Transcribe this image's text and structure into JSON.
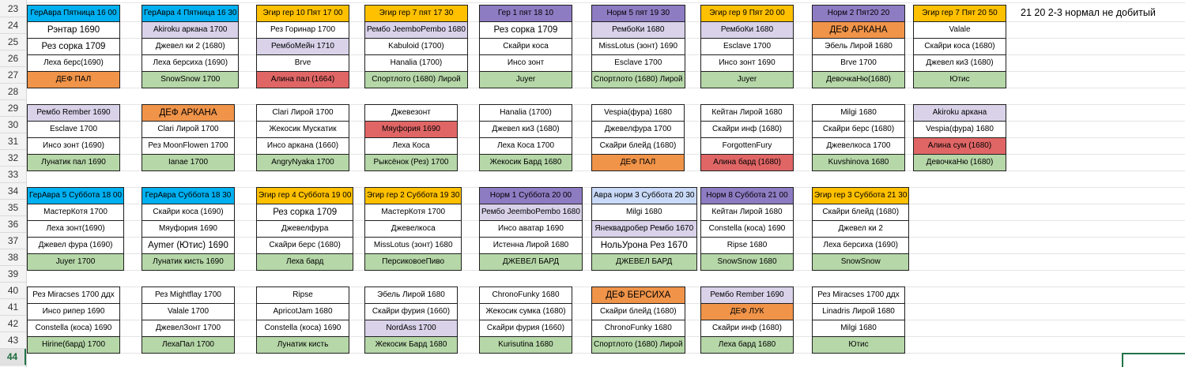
{
  "sheet": {
    "row_numbers": [
      "23",
      "24",
      "25",
      "26",
      "27",
      "28",
      "29",
      "30",
      "31",
      "32",
      "33",
      "34",
      "35",
      "36",
      "37",
      "38",
      "39",
      "40",
      "41",
      "42",
      "43",
      "44"
    ],
    "active_row": "44",
    "note": "21 20 2-3 нормал не добитый",
    "palette": {
      "blue": "#00b0f0",
      "yellow": "#ffc000",
      "purple": "#8e7cc3",
      "lavender": "#d9d2e9",
      "orange": "#f0944a",
      "green": "#b6d7a8",
      "red": "#e06666",
      "light_blue": "#c9daf8",
      "selection": "#217346"
    },
    "blocks": [
      {
        "columns": [
          [
            {
              "t": "ГерАвра Пятница 16 00",
              "c": "blue"
            },
            {
              "t": "Рэнтар 1690",
              "s": "big"
            },
            {
              "t": "Рез сорка 1709",
              "s": "big"
            },
            {
              "t": "Леха берс(1690)"
            },
            {
              "t": "ДЕФ ПАЛ",
              "c": "orange"
            }
          ],
          [
            {
              "t": "ГерАвра 4 Пятница 16 30",
              "c": "blue"
            },
            {
              "t": "Akiroku аркана 1700",
              "c": "lavender"
            },
            {
              "t": "Джевел ки 2 (1680)"
            },
            {
              "t": "Леха берсиха (1690)"
            },
            {
              "t": "SnowSnow 1700",
              "c": "green"
            }
          ],
          [
            {
              "t": "Эгир гер 10 Пят 17 00",
              "c": "yellow"
            },
            {
              "t": "Рез Горинар 1700"
            },
            {
              "t": "РембоМейн 1710",
              "c": "lavender"
            },
            {
              "t": "Brve"
            },
            {
              "t": "Алина пал (1664)",
              "c": "red"
            }
          ],
          [
            {
              "t": "Эгир гер 7 пят 17 30",
              "c": "yellow"
            },
            {
              "t": "Рембо JeemboPembo 1680",
              "c": "lavender"
            },
            {
              "t": "Kabuloid (1700)"
            },
            {
              "t": "Hanalia (1700)"
            },
            {
              "t": "Спортлото (1680) Лирой",
              "c": "green"
            }
          ],
          [
            {
              "t": "Гер 1 пят 18 10",
              "c": "purple"
            },
            {
              "t": "Рез сорка 1709",
              "s": "big"
            },
            {
              "t": "Скайри коса"
            },
            {
              "t": "Инсо зонт"
            },
            {
              "t": "Juyer",
              "c": "green"
            }
          ],
          [
            {
              "t": "Норм 5  пят 19 30",
              "c": "purple"
            },
            {
              "t": "РембоКи 1680",
              "c": "lavender"
            },
            {
              "t": "MissLotus (зонт) 1690"
            },
            {
              "t": "Esclave 1700"
            },
            {
              "t": "Спортлото (1680) Лирой",
              "c": "green"
            }
          ],
          [
            {
              "t": "Эгир гер 9 Пят  20 00",
              "c": "yellow"
            },
            {
              "t": "РембоКи 1680",
              "c": "lavender"
            },
            {
              "t": "Esclave 1700"
            },
            {
              "t": "Инсо зонт 1690"
            },
            {
              "t": "Juyer",
              "c": "green"
            }
          ],
          [
            {
              "t": "Норм 2 Пят20 20",
              "c": "purple"
            },
            {
              "t": "ДЕФ АРКАНА",
              "c": "orange",
              "s": "big"
            },
            {
              "t": "Эбель Лирой 1680"
            },
            {
              "t": "Brve 1700"
            },
            {
              "t": "ДевочкаНю(1680)",
              "c": "green"
            }
          ],
          [
            {
              "t": "Эгир гер 7 Пят 20 50",
              "c": "yellow"
            },
            {
              "t": "Valale"
            },
            {
              "t": "Скайри коса (1680)"
            },
            {
              "t": "Джевел ки3 (1680)"
            },
            {
              "t": "Ютис",
              "c": "green"
            }
          ]
        ]
      },
      {
        "columns": [
          [
            {
              "t": "Рембо Rember 1690",
              "c": "lavender"
            },
            {
              "t": "Esclave 1700"
            },
            {
              "t": "Инсо зонт (1690)"
            },
            {
              "t": "Лунатик пал 1690",
              "c": "green"
            }
          ],
          [
            {
              "t": "ДЕФ АРКАНА",
              "c": "orange",
              "s": "big"
            },
            {
              "t": "Clari Лирой 1700"
            },
            {
              "t": "Рез MoonFlowen 1700"
            },
            {
              "t": "Ianae 1700",
              "c": "green"
            }
          ],
          [
            {
              "t": "Clari Лирой 1700"
            },
            {
              "t": "Жекосик Мускатик"
            },
            {
              "t": "Инсо аркана (1660)"
            },
            {
              "t": "AngryNyaka 1700",
              "c": "green"
            }
          ],
          [
            {
              "t": "Джевезонт"
            },
            {
              "t": "Мяуфория 1690",
              "c": "red"
            },
            {
              "t": "Леха Коса"
            },
            {
              "t": "Рыксёнок (Рез) 1700",
              "c": "green"
            }
          ],
          [
            {
              "t": "Hanalia (1700)"
            },
            {
              "t": "Джевел ки3 (1680)"
            },
            {
              "t": "Леха Коса 1700"
            },
            {
              "t": "Жекосик Бард 1680",
              "c": "green"
            }
          ],
          [
            {
              "t": "Vespia(фура) 1680"
            },
            {
              "t": "Джевелфура 1700"
            },
            {
              "t": "Скайри блейд  (1680)"
            },
            {
              "t": "ДЕФ ПАЛ",
              "c": "orange"
            }
          ],
          [
            {
              "t": "Кейтан Лирой 1680"
            },
            {
              "t": "Скайри инф (1680)"
            },
            {
              "t": "ForgottenFury"
            },
            {
              "t": "Алина бард  (1680)",
              "c": "red"
            }
          ],
          [
            {
              "t": "Milgi 1680"
            },
            {
              "t": "Скайри берс (1680)"
            },
            {
              "t": "Джевелкоса 1700"
            },
            {
              "t": "Kuvshinova 1680",
              "c": "green"
            }
          ],
          [
            {
              "t": "Akiroku аркана",
              "c": "lavender"
            },
            {
              "t": "Vespia(фура) 1680"
            },
            {
              "t": "Алина сум (1680)",
              "c": "red"
            },
            {
              "t": "ДевочкаНю (1680)",
              "c": "green"
            }
          ]
        ]
      },
      {
        "columns": [
          [
            {
              "t": "ГерАвра 5 Суббота 18 00",
              "c": "blue"
            },
            {
              "t": "МастерКотя 1700"
            },
            {
              "t": "Леха зонт(1690)"
            },
            {
              "t": "Джевел фура (1690)"
            },
            {
              "t": "Juyer 1700",
              "c": "green"
            }
          ],
          [
            {
              "t": "ГерАвра Суббота 18 30",
              "c": "blue"
            },
            {
              "t": "Скайри коса (1690)"
            },
            {
              "t": "Мяуфория 1690"
            },
            {
              "t": "Aymer (Ютис) 1690",
              "s": "big"
            },
            {
              "t": "Лунатик кисть 1690",
              "c": "green"
            }
          ],
          [
            {
              "t": "Эгир гер 4 Суббота 19 00",
              "c": "yellow"
            },
            {
              "t": "Рез сорка 1709",
              "s": "big"
            },
            {
              "t": "Джевелфура"
            },
            {
              "t": "Скайри берс (1680)"
            },
            {
              "t": "Леха бард",
              "c": "green"
            }
          ],
          [
            {
              "t": "Эгир гер 2 Суббота 19 30",
              "c": "yellow"
            },
            {
              "t": "МастерКотя 1700"
            },
            {
              "t": "Джевелкоса"
            },
            {
              "t": "MissLotus (зонт) 1680"
            },
            {
              "t": "ПерсиковоеПиво",
              "c": "green"
            }
          ],
          [
            {
              "t": "Норм 1  Суббота 20 00",
              "c": "purple"
            },
            {
              "t": "Рембо JeemboPembo 1680",
              "c": "lavender"
            },
            {
              "t": "Инсо аватар 1690"
            },
            {
              "t": "Истенна Лирой 1680"
            },
            {
              "t": "ДЖЕВЕЛ БАРД",
              "c": "green"
            }
          ],
          [
            {
              "t": "Авра норм 3 Суббота 20 30",
              "c": "ltblue"
            },
            {
              "t": "Milgi 1680"
            },
            {
              "t": "Янеквадробер Рембо 1670",
              "c": "lavender"
            },
            {
              "t": "НольУрона Рез 1670",
              "s": "big"
            },
            {
              "t": "ДЖЕВЕЛ БАРД",
              "c": "green"
            }
          ],
          [
            {
              "t": "Норм 8 Суббота 21 00",
              "c": "purple"
            },
            {
              "t": "Кейтан Лирой 1680"
            },
            {
              "t": "Constella (коса) 1690"
            },
            {
              "t": "Ripse 1680"
            },
            {
              "t": "SnowSnow 1680",
              "c": "green"
            }
          ],
          [
            {
              "t": "Эгир гер 3 Суббота 21 30",
              "c": "yellow"
            },
            {
              "t": "Скайри блейд  (1680)"
            },
            {
              "t": "Джевел ки 2"
            },
            {
              "t": "Леха берсиха (1690)"
            },
            {
              "t": "SnowSnow",
              "c": "green"
            }
          ]
        ]
      },
      {
        "columns": [
          [
            {
              "t": "Рез Miracses 1700 ддх"
            },
            {
              "t": "Инсо рипер 1690"
            },
            {
              "t": "Constella (коса) 1690"
            },
            {
              "t": "Hirine(бард) 1700",
              "c": "green"
            }
          ],
          [
            {
              "t": "Рез Mightflay 1700"
            },
            {
              "t": "Valale 1700"
            },
            {
              "t": "ДжевелЗонт 1700"
            },
            {
              "t": "ЛехаПал  1700",
              "c": "green"
            }
          ],
          [
            {
              "t": "Ripse"
            },
            {
              "t": "ApricotJam 1680"
            },
            {
              "t": "Constella (коса) 1690"
            },
            {
              "t": "Лунатик кисть",
              "c": "green"
            }
          ],
          [
            {
              "t": "Эбель Лирой 1680"
            },
            {
              "t": "Скайри фурия (1660)"
            },
            {
              "t": "NordAss 1700",
              "c": "lavender"
            },
            {
              "t": "Жекосик Бард 1680",
              "c": "green"
            }
          ],
          [
            {
              "t": "ChronoFunky 1680"
            },
            {
              "t": "Жекосик сумка (1680)"
            },
            {
              "t": "Скайри фурия (1660)"
            },
            {
              "t": "Kurisutina 1680",
              "c": "green"
            }
          ],
          [
            {
              "t": "ДЕФ БЕРСИХА",
              "c": "orange",
              "s": "big"
            },
            {
              "t": "Скайри блейд (1680)"
            },
            {
              "t": "ChronoFunky 1680"
            },
            {
              "t": "Спортлото (1680) Лирой",
              "c": "green"
            }
          ],
          [
            {
              "t": "Рембо Rember 1690",
              "c": "lavender"
            },
            {
              "t": "ДЕФ ЛУК",
              "c": "orange"
            },
            {
              "t": "Скайри инф (1680)"
            },
            {
              "t": "Леха бард 1680",
              "c": "green"
            }
          ],
          [
            {
              "t": "Рез Miracses 1700 ддх"
            },
            {
              "t": "Linadris Лирой 1680"
            },
            {
              "t": "Milgi 1680"
            },
            {
              "t": "Ютис",
              "c": "green"
            }
          ]
        ]
      }
    ]
  }
}
